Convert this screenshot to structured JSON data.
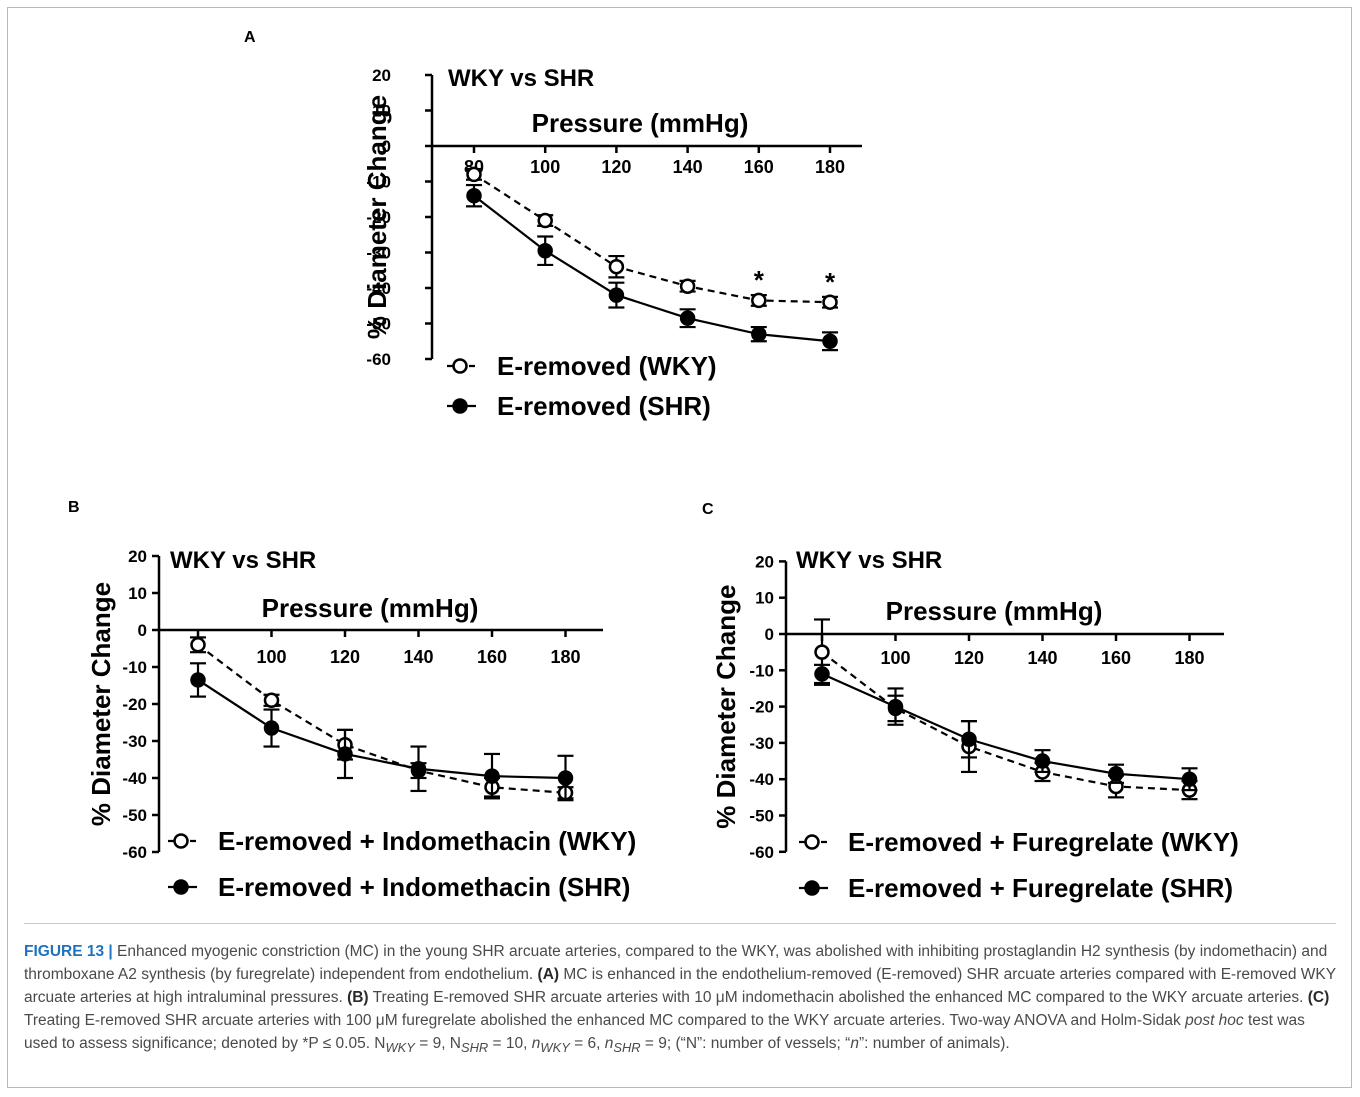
{
  "figure": {
    "panels": [
      {
        "id": "A",
        "letter": "A"
      },
      {
        "id": "B",
        "letter": "B"
      },
      {
        "id": "C",
        "letter": "C"
      }
    ]
  },
  "chart_data": [
    {
      "panel": "A",
      "type": "line",
      "title": "WKY vs SHR",
      "xlabel": "Pressure (mmHg)",
      "ylabel": "% Diameter Change",
      "x": [
        80,
        100,
        120,
        140,
        160,
        180
      ],
      "xticks": [
        "80",
        "100",
        "120",
        "140",
        "160",
        "180"
      ],
      "ylim": [
        -60,
        20
      ],
      "yticks": [
        20,
        10,
        0,
        -10,
        -20,
        -30,
        -40,
        -50,
        -60
      ],
      "legend_position": "bottom-left",
      "series": [
        {
          "name": "E-removed (WKY)",
          "marker": "open-circle",
          "line": "dashed",
          "values": [
            -8,
            -21,
            -34,
            -39.5,
            -43.5,
            -44
          ],
          "err": [
            1.5,
            1.5,
            3,
            1.5,
            1.5,
            1.5
          ]
        },
        {
          "name": "E-removed (SHR)",
          "marker": "filled-circle",
          "line": "solid",
          "values": [
            -14,
            -29.5,
            -42,
            -48.5,
            -53,
            -55
          ],
          "err": [
            3,
            4,
            3.5,
            2.5,
            2,
            2.5
          ]
        }
      ],
      "annotations": [
        {
          "x": 160,
          "text": "*"
        },
        {
          "x": 180,
          "text": "*"
        }
      ]
    },
    {
      "panel": "B",
      "type": "line",
      "title": "WKY vs SHR",
      "xlabel": "Pressure (mmHg)",
      "ylabel": "% Diameter Change",
      "x": [
        80,
        100,
        120,
        140,
        160,
        180
      ],
      "xticks": [
        "100",
        "120",
        "140",
        "160",
        "180"
      ],
      "ylim": [
        -60,
        20
      ],
      "yticks": [
        20,
        10,
        0,
        -10,
        -20,
        -30,
        -40,
        -50,
        -60
      ],
      "legend_position": "bottom-left",
      "series": [
        {
          "name": "E-removed + Indomethacin (WKY)",
          "marker": "open-circle",
          "line": "dashed",
          "values": [
            -4,
            -19,
            -31,
            -38,
            -42.5,
            -44
          ],
          "err": [
            2,
            1.5,
            4,
            2,
            2.5,
            1.5
          ]
        },
        {
          "name": "E-removed + Indomethacin (SHR)",
          "marker": "filled-circle",
          "line": "solid",
          "values": [
            -13.5,
            -26.5,
            -33.5,
            -37.5,
            -39.5,
            -40
          ],
          "err": [
            4.5,
            5,
            6.5,
            6,
            6,
            6
          ]
        }
      ],
      "annotations": []
    },
    {
      "panel": "C",
      "type": "line",
      "title": "WKY vs SHR",
      "xlabel": "Pressure (mmHg)",
      "ylabel": "% Diameter Change",
      "x": [
        80,
        100,
        120,
        140,
        160,
        180
      ],
      "xticks": [
        "100",
        "120",
        "140",
        "160",
        "180"
      ],
      "ylim": [
        -60,
        20
      ],
      "yticks": [
        20,
        10,
        0,
        -10,
        -20,
        -30,
        -40,
        -50,
        -60
      ],
      "legend_position": "bottom-left",
      "series": [
        {
          "name": "E-removed + Furegrelate (WKY)",
          "marker": "open-circle",
          "line": "dashed",
          "values": [
            -5,
            -20.5,
            -31,
            -38,
            -42,
            -43
          ],
          "err": [
            9,
            3.5,
            7,
            2.5,
            3,
            2.5
          ]
        },
        {
          "name": "E-removed + Furegrelate (SHR)",
          "marker": "filled-circle",
          "line": "solid",
          "values": [
            -11,
            -20,
            -29,
            -35,
            -38.5,
            -40
          ],
          "err": [
            2.5,
            5,
            5,
            3,
            2.5,
            3
          ]
        }
      ],
      "annotations": []
    }
  ],
  "caption": {
    "label": "FIGURE 13 |",
    "intro": " Enhanced myogenic constriction (MC) in the young SHR arcuate arteries, compared to the WKY, was abolished with inhibiting prostaglandin H2 synthesis (by indomethacin) and thromboxane A2 synthesis (by furegrelate) independent from endothelium. ",
    "a_tag": "(A)",
    "a_text": " MC is enhanced in the endothelium-removed (E-removed) SHR arcuate arteries compared with E-removed WKY arcuate arteries at high intraluminal pressures. ",
    "b_tag": "(B)",
    "b_text": " Treating E-removed SHR arcuate arteries with 10 μM indomethacin abolished the enhanced MC compared to the WKY arcuate arteries. ",
    "c_tag": "(C)",
    "c_text": " Treating E-removed SHR arcuate arteries with 100 μM furegrelate abolished the enhanced MC compared to the WKY arcuate arteries. Two-way ANOVA and Holm-Sidak ",
    "post_hoc": "post hoc",
    "c_text2": " test was used to assess significance; denoted by ",
    "sig": "*P ≤ 0.05. N",
    "n1_sub": "WKY",
    "n1_val": " = 9, N",
    "n2_sub": "SHR",
    "n2_val": " = 10, ",
    "n3": "n",
    "n3_sub": "WKY",
    "n3_val": " = 6, ",
    "n4": "n",
    "n4_sub": "SHR",
    "n4_val": " = 9; (“N”: number of vessels; “",
    "n5": "n",
    "tail": "”: number of animals)."
  }
}
